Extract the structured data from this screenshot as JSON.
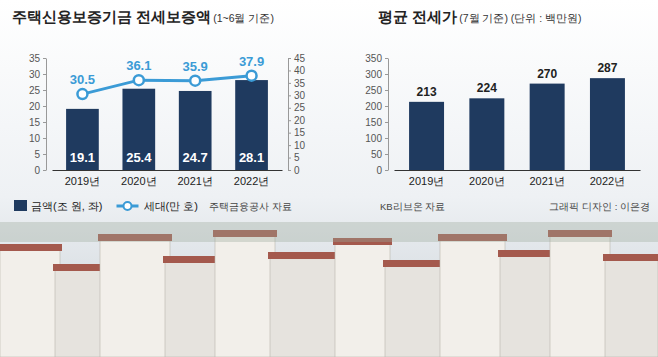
{
  "chart_data": [
    {
      "type": "bar",
      "title": "주택신용보증기금 전세보증액",
      "subtitle": "(1~6월 기준)",
      "categories": [
        "2019년",
        "2020년",
        "2021년",
        "2022년"
      ],
      "series": [
        {
          "name": "금액(조 원, 좌)",
          "type": "bar",
          "color": "#1f3a5f",
          "values": [
            19.1,
            25.4,
            24.7,
            28.1
          ]
        },
        {
          "name": "세대(만 호)",
          "type": "line",
          "axis": "y2",
          "color": "#3b9bd6",
          "marker": "circle",
          "values": [
            30.5,
            36.1,
            35.9,
            37.9
          ]
        }
      ],
      "ylim": [
        0,
        35
      ],
      "yticks": [
        0,
        5,
        10,
        15,
        20,
        25,
        30,
        35
      ],
      "y2lim": [
        0,
        45
      ],
      "y2ticks": [
        0,
        5,
        10,
        15,
        20,
        25,
        30,
        35,
        40,
        45
      ],
      "grid": false,
      "data_labels": true,
      "legend": "bottom-left",
      "annotations": [
        "주택금융공사 자료"
      ]
    },
    {
      "type": "bar",
      "title": "평균 전세가",
      "subtitle": "(7월 기준) (단위 : 백만원)",
      "categories": [
        "2019년",
        "2020년",
        "2021년",
        "2022년"
      ],
      "values": [
        213,
        224,
        270,
        287
      ],
      "color": "#1f3a5f",
      "ylim": [
        0,
        350
      ],
      "yticks": [
        0,
        50,
        100,
        150,
        200,
        250,
        300,
        350
      ],
      "grid": false,
      "data_labels": true,
      "annotations": [
        "KB리브온 자료",
        "그래픽 디자인 : 이은경"
      ]
    }
  ]
}
